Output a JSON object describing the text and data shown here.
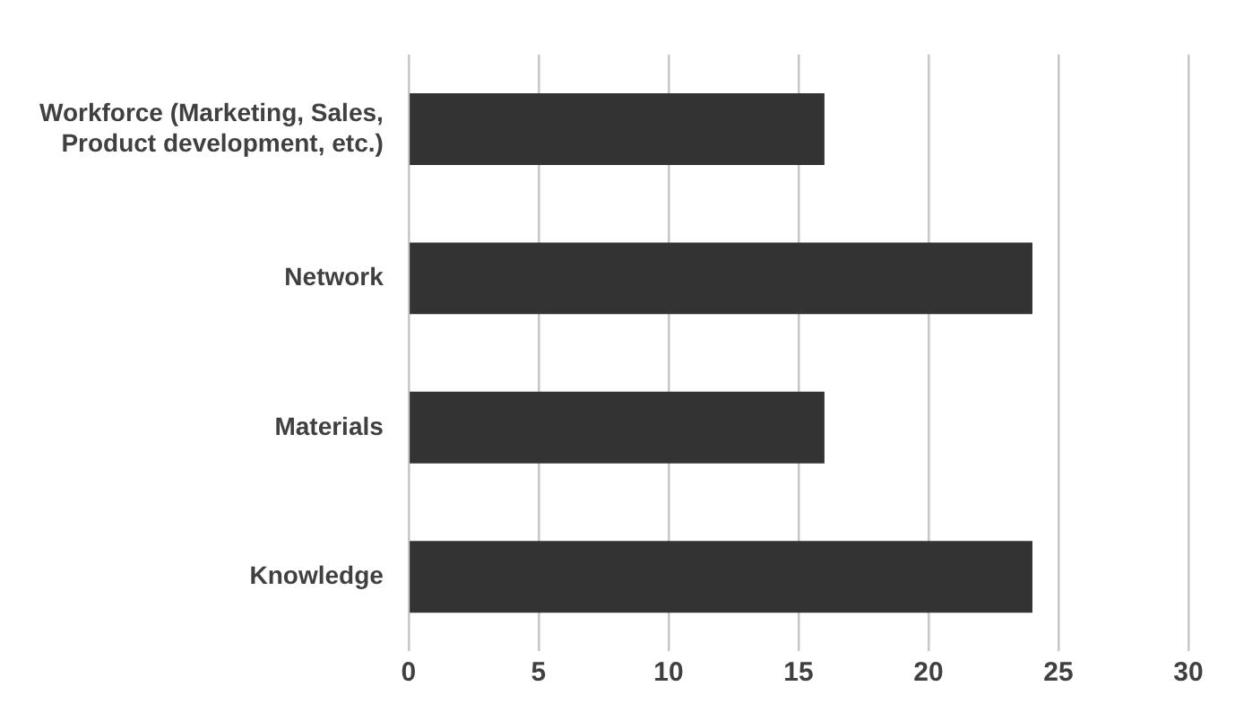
{
  "chart_data": {
    "type": "bar",
    "orientation": "horizontal",
    "categories": [
      "Workforce (Marketing, Sales, Product development, etc.)",
      "Network",
      "Materials",
      "Knowledge"
    ],
    "values": [
      16,
      24,
      16,
      24
    ],
    "color": "#333333",
    "xlim": [
      0,
      30
    ],
    "xticks": [
      0,
      5,
      10,
      15,
      20,
      25,
      30
    ],
    "grid": "x",
    "legend": false
  }
}
